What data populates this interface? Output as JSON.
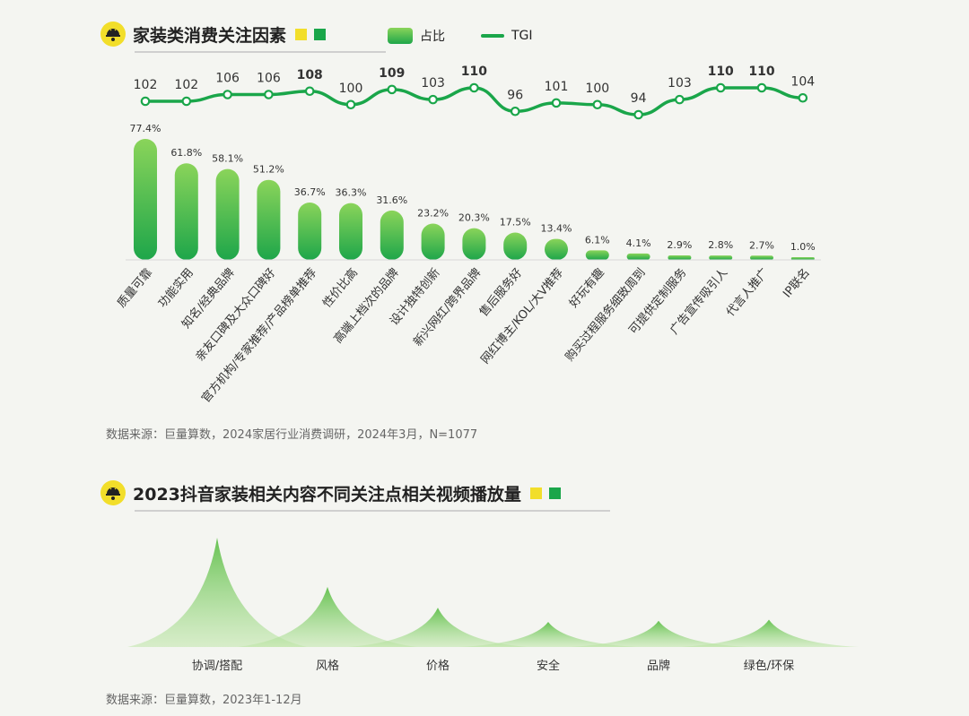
{
  "section1": {
    "title": "家装类消费关注因素",
    "legend_bar": "占比",
    "legend_line": "TGI",
    "source": "数据来源：巨量算数，2024家居行业消费调研，2024年3月，N=1077"
  },
  "section2": {
    "title": "2023抖音家装相关内容不同关注点相关视频播放量",
    "source": "数据来源：巨量算数，2023年1-12月"
  },
  "colors": {
    "accent_yellow": "#f2de2a",
    "accent_green": "#1aa64a",
    "bar_top": "#8ad45a",
    "bar_bottom": "#1ea64a"
  },
  "chart_data": [
    {
      "type": "bar",
      "categories": [
        "质量可靠",
        "功能实用",
        "知名/经典品牌",
        "亲友口碑及大众口碑好",
        "官方机构/专家推荐/产品榜单推荐",
        "性价比高",
        "高端上档次的品牌",
        "设计独特创新",
        "新兴网红/跨界品牌",
        "售后服务好",
        "网红博主/KOL/大V推荐",
        "好玩有趣",
        "购买过程服务细致周到",
        "可提供定制服务",
        "广告宣传吸引人",
        "代言人推广",
        "IP联名"
      ],
      "series": [
        {
          "name": "占比",
          "type": "bar",
          "values": [
            77.4,
            61.8,
            58.1,
            51.2,
            36.7,
            36.3,
            31.6,
            23.2,
            20.3,
            17.5,
            13.4,
            6.1,
            4.1,
            2.9,
            2.8,
            2.7,
            1.0
          ],
          "labels": [
            "77.4%",
            "61.8%",
            "58.1%",
            "51.2%",
            "36.7%",
            "36.3%",
            "31.6%",
            "23.2%",
            "20.3%",
            "17.5%",
            "13.4%",
            "6.1%",
            "4.1%",
            "2.9%",
            "2.8%",
            "2.7%",
            "1.0%"
          ]
        },
        {
          "name": "TGI",
          "type": "line",
          "values": [
            102,
            102,
            106,
            106,
            108,
            100,
            109,
            103,
            110,
            96,
            101,
            100,
            94,
            103,
            110,
            110,
            104
          ]
        }
      ],
      "bold_tgi": [
        108,
        109,
        110
      ],
      "ylim": [
        0,
        80
      ],
      "legend": "top"
    },
    {
      "type": "area",
      "categories": [
        "协调/搭配",
        "风格",
        "价格",
        "安全",
        "品牌",
        "绿色/环保"
      ],
      "values": [
        100,
        55,
        36,
        23,
        24,
        25
      ],
      "value_unit": "relative peak height (no printed scale)"
    }
  ]
}
